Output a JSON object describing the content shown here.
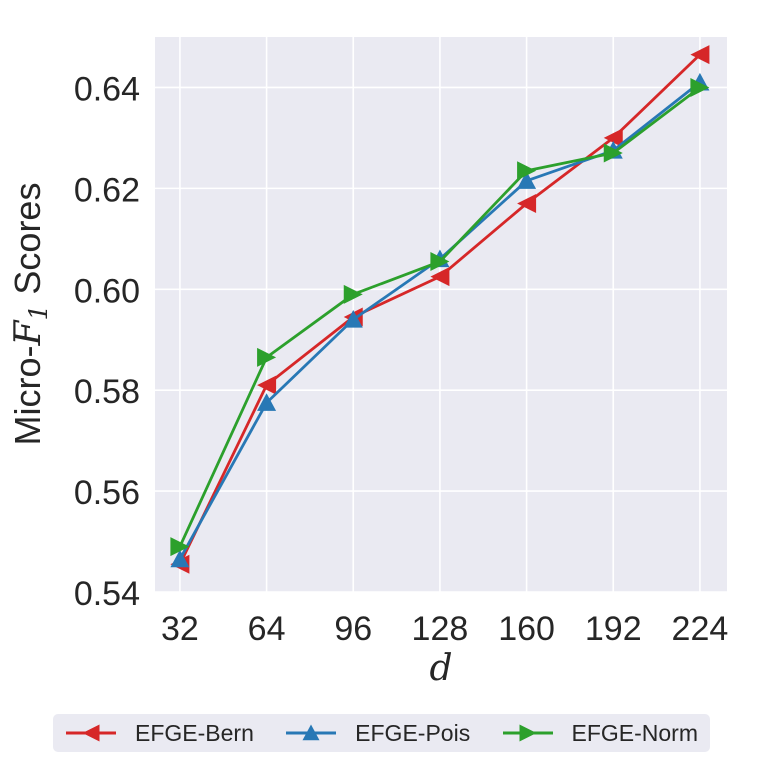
{
  "figure": {
    "background": "#ffffff",
    "plot_background": "#eaeaf2",
    "grid_color": "#ffffff",
    "text_color": "#262626"
  },
  "chart_data": {
    "type": "line",
    "x": [
      32,
      64,
      96,
      128,
      160,
      192,
      224
    ],
    "xlabel": "d",
    "ylabel": "Micro-F1 Scores",
    "ylabel_parts": {
      "prefix": "Micro-",
      "math": "F",
      "sub": "1",
      "suffix": " Scores"
    },
    "xlim": [
      22.8,
      234.0
    ],
    "ylim": [
      0.54,
      0.65
    ],
    "xticks": [
      32,
      64,
      96,
      128,
      160,
      192,
      224
    ],
    "xtick_labels": [
      "32",
      "64",
      "96",
      "128",
      "160",
      "192",
      "224"
    ],
    "yticks": [
      0.54,
      0.56,
      0.58,
      0.6,
      0.62,
      0.64
    ],
    "ytick_labels": [
      "0.54",
      "0.56",
      "0.58",
      "0.60",
      "0.62",
      "0.64"
    ],
    "grid": true,
    "grid_style": "seaborn-darkgrid",
    "legend_position": "bottom",
    "series": [
      {
        "name": "EFGE-Bern",
        "color": "#d62728",
        "marker": "triangle-left",
        "values": [
          0.5455,
          0.581,
          0.5945,
          0.6025,
          0.617,
          0.63,
          0.6465
        ]
      },
      {
        "name": "EFGE-Pois",
        "color": "#2878b5",
        "marker": "triangle-up",
        "values": [
          0.5465,
          0.5775,
          0.594,
          0.606,
          0.6215,
          0.6275,
          0.641
        ]
      },
      {
        "name": "EFGE-Norm",
        "color": "#2ca02c",
        "marker": "triangle-right",
        "values": [
          0.549,
          0.5865,
          0.599,
          0.6055,
          0.6235,
          0.627,
          0.64
        ]
      }
    ]
  }
}
